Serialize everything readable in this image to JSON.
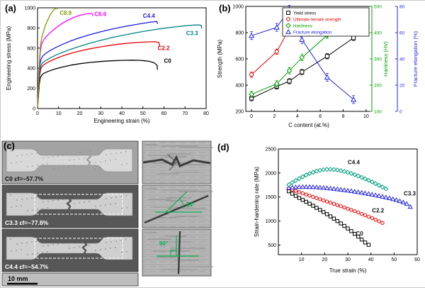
{
  "figure": {
    "panels": {
      "a": "(a)",
      "b": "(b)",
      "c": "(c)",
      "d": "(d)"
    }
  },
  "chart_data": [
    {
      "id": "a",
      "type": "line",
      "xlabel": "Engineering strain (%)",
      "ylabel": "Engineering stress (MPa)",
      "xlim": [
        0,
        80
      ],
      "ylim": [
        0,
        1000
      ],
      "xticks": [
        0,
        10,
        20,
        30,
        40,
        50,
        60,
        70,
        80
      ],
      "yticks": [
        0,
        200,
        400,
        600,
        800,
        1000
      ],
      "series": [
        {
          "name": "C0",
          "color": "#000000",
          "label_at": [
            60,
            455
          ],
          "points": [
            [
              0,
              0
            ],
            [
              0.4,
              120
            ],
            [
              0.8,
              240
            ],
            [
              1.3,
              305
            ],
            [
              2,
              332
            ],
            [
              3,
              350
            ],
            [
              5,
              368
            ],
            [
              8,
              391
            ],
            [
              12,
              413
            ],
            [
              16,
              431
            ],
            [
              20,
              445
            ],
            [
              25,
              458
            ],
            [
              30,
              467
            ],
            [
              35,
              474
            ],
            [
              40,
              478
            ],
            [
              45,
              480
            ],
            [
              48,
              479
            ],
            [
              51,
              474
            ],
            [
              53,
              468
            ],
            [
              55,
              457
            ],
            [
              56,
              444
            ],
            [
              56.7,
              428
            ],
            [
              56.9,
              385
            ]
          ]
        },
        {
          "name": "C2.2",
          "color": "#e60000",
          "label_at": [
            57,
            580
          ],
          "points": [
            [
              0,
              0
            ],
            [
              0.5,
              180
            ],
            [
              1,
              330
            ],
            [
              1.6,
              398
            ],
            [
              2.5,
              426
            ],
            [
              4,
              449
            ],
            [
              6,
              471
            ],
            [
              9,
              499
            ],
            [
              12,
              523
            ],
            [
              16,
              549
            ],
            [
              20,
              571
            ],
            [
              25,
              594
            ],
            [
              30,
              613
            ],
            [
              35,
              629
            ],
            [
              40,
              642
            ],
            [
              45,
              652
            ],
            [
              50,
              659
            ],
            [
              53,
              662
            ],
            [
              55,
              663
            ],
            [
              56.5,
              661
            ],
            [
              57.6,
              654
            ],
            [
              58,
              615
            ]
          ]
        },
        {
          "name": "C3.3",
          "color": "#008080",
          "label_at": [
            70.5,
            730
          ],
          "points": [
            [
              0,
              0
            ],
            [
              0.5,
              220
            ],
            [
              1.1,
              385
            ],
            [
              1.7,
              432
            ],
            [
              2.5,
              456
            ],
            [
              4,
              479
            ],
            [
              6,
              503
            ],
            [
              9,
              533
            ],
            [
              12,
              559
            ],
            [
              16,
              590
            ],
            [
              20,
              618
            ],
            [
              25,
              649
            ],
            [
              30,
              677
            ],
            [
              35,
              702
            ],
            [
              40,
              725
            ],
            [
              45,
              746
            ],
            [
              50,
              765
            ],
            [
              55,
              782
            ],
            [
              60,
              797
            ],
            [
              65,
              810
            ],
            [
              69,
              819
            ],
            [
              72,
              825
            ],
            [
              74.5,
              829
            ],
            [
              76.5,
              830
            ],
            [
              77.6,
              826
            ],
            [
              78,
              795
            ]
          ]
        },
        {
          "name": "C4.4",
          "color": "#1a1ae6",
          "label_at": [
            50,
            900
          ],
          "points": [
            [
              0,
              0
            ],
            [
              0.5,
              260
            ],
            [
              1.1,
              435
            ],
            [
              1.7,
              492
            ],
            [
              2.5,
              521
            ],
            [
              4,
              549
            ],
            [
              6,
              576
            ],
            [
              9,
              610
            ],
            [
              12,
              639
            ],
            [
              16,
              673
            ],
            [
              20,
              702
            ],
            [
              25,
              734
            ],
            [
              30,
              762
            ],
            [
              35,
              787
            ],
            [
              40,
              809
            ],
            [
              45,
              828
            ],
            [
              49,
              842
            ],
            [
              52,
              852
            ],
            [
              54,
              859
            ],
            [
              55.5,
              863
            ],
            [
              56.6,
              864
            ],
            [
              57,
              840
            ]
          ]
        },
        {
          "name": "C6.6",
          "color": "#ff00ff",
          "label_at": [
            27,
            920
          ],
          "points": [
            [
              0,
              0
            ],
            [
              0.6,
              330
            ],
            [
              1.3,
              565
            ],
            [
              1.9,
              638
            ],
            [
              2.7,
              674
            ],
            [
              4,
              711
            ],
            [
              6,
              753
            ],
            [
              8,
              789
            ],
            [
              10,
              821
            ],
            [
              12,
              849
            ],
            [
              14,
              873
            ],
            [
              16,
              894
            ],
            [
              18,
              911
            ],
            [
              20,
              925
            ],
            [
              22,
              935
            ],
            [
              23.5,
              941
            ],
            [
              24.8,
              944
            ],
            [
              25.9,
              941
            ],
            [
              26.4,
              918
            ]
          ]
        },
        {
          "name": "C8.9",
          "color": "#7f9d00",
          "label_at": [
            10.5,
            930
          ],
          "points": [
            [
              0,
              0
            ],
            [
              0.6,
              360
            ],
            [
              1.3,
              610
            ],
            [
              1.9,
              695
            ],
            [
              2.6,
              748
            ],
            [
              3.3,
              798
            ],
            [
              4.1,
              843
            ],
            [
              4.9,
              882
            ],
            [
              5.7,
              917
            ],
            [
              6.5,
              946
            ],
            [
              7.3,
              969
            ],
            [
              8,
              985
            ],
            [
              8.6,
              994
            ],
            [
              9.1,
              997
            ],
            [
              9.5,
              983
            ]
          ]
        }
      ]
    },
    {
      "id": "b",
      "type": "line",
      "legend": true,
      "xlabel": "C content (at.%)",
      "ylabel": "Strength (MPa)",
      "xlim": [
        -0.5,
        10.5
      ],
      "ylim": [
        200,
        1000
      ],
      "xticks": [
        0,
        2,
        4,
        6,
        8,
        10
      ],
      "yticks": [
        200,
        400,
        600,
        800,
        1000
      ],
      "right_axes": [
        {
          "key": "r0",
          "label": "Hardness (HV)",
          "color": "#00a000",
          "lim": [
            100,
            500
          ],
          "ticks": [
            100,
            200,
            300,
            400,
            500
          ],
          "offset": 0
        },
        {
          "key": "r1",
          "label": "Fracture elongation (%)",
          "color": "#2424dd",
          "lim": [
            0,
            80
          ],
          "ticks": [
            0,
            20,
            40,
            60,
            80
          ],
          "offset": 36
        }
      ],
      "x": [
        0,
        2.2,
        3.3,
        4.4,
        6.6,
        8.9
      ],
      "series": [
        {
          "name": "Yield stress",
          "color": "#000000",
          "marker": "square",
          "axis": "y",
          "err": 20,
          "values": [
            300,
            390,
            430,
            500,
            620,
            760
          ]
        },
        {
          "name": "Ultimate tensile strength",
          "color": "#e60000",
          "marker": "circle",
          "axis": "y",
          "err": 20,
          "values": [
            480,
            655,
            830,
            880,
            935,
            960
          ]
        },
        {
          "name": "Hardness",
          "color": "#00a000",
          "marker": "diamond",
          "axis": "r0",
          "err": 12,
          "values": [
            165,
            205,
            255,
            305,
            390,
            455
          ]
        },
        {
          "name": "Fracture elongation",
          "color": "#2424dd",
          "marker": "triangle",
          "axis": "r1",
          "err": 3,
          "values": [
            57.7,
            64,
            77.8,
            54.7,
            26,
            9
          ]
        }
      ]
    },
    {
      "id": "d",
      "type": "scatter",
      "xlabel": "True strain (%)",
      "ylabel": "Strain-hardening rate (MPa)",
      "xlim": [
        0,
        60
      ],
      "ylim": [
        300,
        2500
      ],
      "xticks": [
        10,
        20,
        30,
        40,
        50,
        60
      ],
      "yticks": [
        500,
        1000,
        1500,
        2000,
        2500
      ],
      "series": [
        {
          "name": "C0",
          "color": "#000000",
          "marker": "square",
          "label_color": "#111111",
          "label_at": [
            33.5,
            700
          ],
          "x0": 4.5,
          "dx": 1.5,
          "values": [
            1620,
            1570,
            1525,
            1480,
            1440,
            1400,
            1360,
            1318,
            1275,
            1232,
            1188,
            1143,
            1097,
            1050,
            1000,
            950,
            898,
            845,
            790,
            733,
            675,
            615,
            553,
            505
          ]
        },
        {
          "name": "C2.2",
          "color": "#e60000",
          "marker": "circle",
          "label_color": "#111111",
          "label_at": [
            40.5,
            1180
          ],
          "x0": 4.5,
          "dx": 1.5,
          "values": [
            1680,
            1654,
            1628,
            1602,
            1577,
            1552,
            1527,
            1502,
            1478,
            1454,
            1430,
            1406,
            1382,
            1358,
            1333,
            1308,
            1283,
            1257,
            1231,
            1204,
            1177,
            1149,
            1120,
            1090,
            1060,
            1028,
            995,
            962
          ]
        },
        {
          "name": "C3.3",
          "color": "#2424dd",
          "marker": "triangle",
          "label_color": "#111111",
          "label_at": [
            54.2,
            1530
          ],
          "x0": 4.5,
          "dx": 1.5,
          "values": [
            1690,
            1700,
            1706,
            1710,
            1712,
            1712,
            1710,
            1707,
            1703,
            1698,
            1692,
            1686,
            1679,
            1671,
            1663,
            1654,
            1645,
            1635,
            1625,
            1614,
            1603,
            1591,
            1579,
            1566,
            1553,
            1539,
            1524,
            1509,
            1493,
            1476,
            1458,
            1438,
            1416,
            1390,
            1358
          ],
          "extra": [
            [
              57,
              1295
            ]
          ]
        },
        {
          "name": "C4.4",
          "color": "#00a080",
          "marker": "diamond",
          "label_color": "#111111",
          "label_at": [
            30,
            2180
          ],
          "x0": 4.5,
          "dx": 1.5,
          "values": [
            1755,
            1800,
            1843,
            1884,
            1922,
            1957,
            1988,
            2015,
            2038,
            2056,
            2068,
            2075,
            2076,
            2072,
            2063,
            2050,
            2033,
            2013,
            1990,
            1965,
            1938,
            1909,
            1878,
            1846,
            1813,
            1779,
            1744,
            1708,
            1671
          ]
        }
      ]
    }
  ],
  "panel_c": {
    "photos": [
      {
        "label": "C0 εf=~57.7%"
      },
      {
        "label": "C3.3 εf=~77.8%"
      },
      {
        "label": "C4.4 εf=~54.7%"
      }
    ],
    "scalebar": "10 mm",
    "crops": [
      {
        "angle_label": ""
      },
      {
        "angle_label": "54°"
      },
      {
        "angle_label": "90°"
      }
    ],
    "annotation_color": "#00b050"
  }
}
